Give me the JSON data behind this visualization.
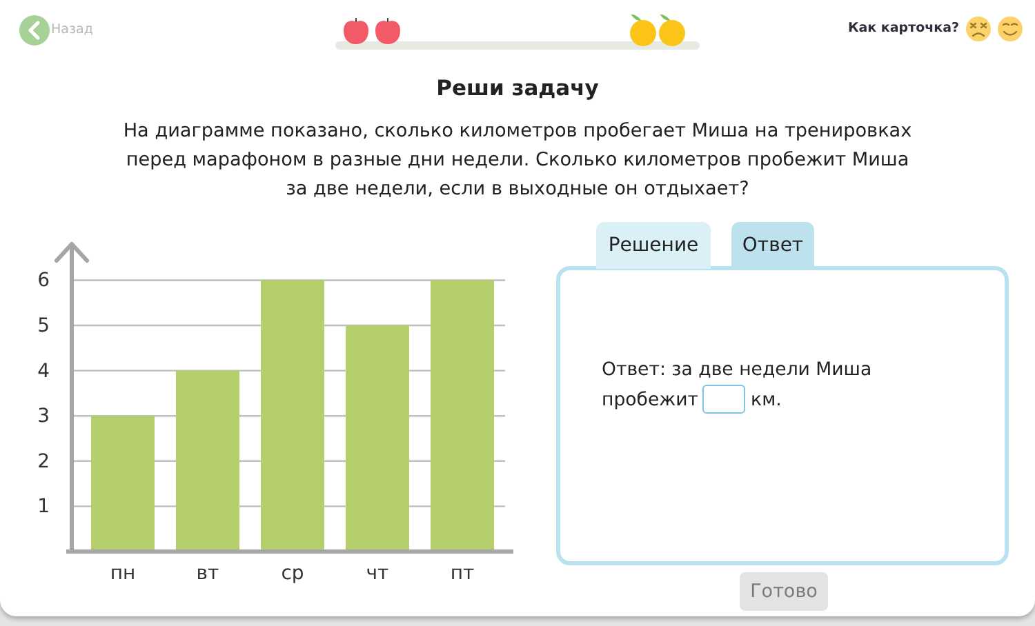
{
  "chart_data": {
    "type": "bar",
    "title": "Реши задачу",
    "subtitle": "На диаграмме показано, сколько километров пробегает Миша на тренировках перед марафоном в разные дни недели. Сколько километров пробежит Миша за две недели, если в выходные он отдыхает?",
    "categories": [
      "пн",
      "вт",
      "ср",
      "чт",
      "пт"
    ],
    "values": [
      3,
      4,
      6,
      5,
      6
    ],
    "color": "#b5cf6d",
    "ylim": [
      0,
      6.8
    ],
    "yticks": [
      1,
      2,
      3,
      4,
      5,
      6
    ],
    "grid": "y",
    "annotations": [
      "Назад",
      "Как карточка?",
      "Решение",
      "Ответ",
      "Ответ: за две недели Миша",
      "пробежит",
      "км.",
      "Готово"
    ]
  }
}
